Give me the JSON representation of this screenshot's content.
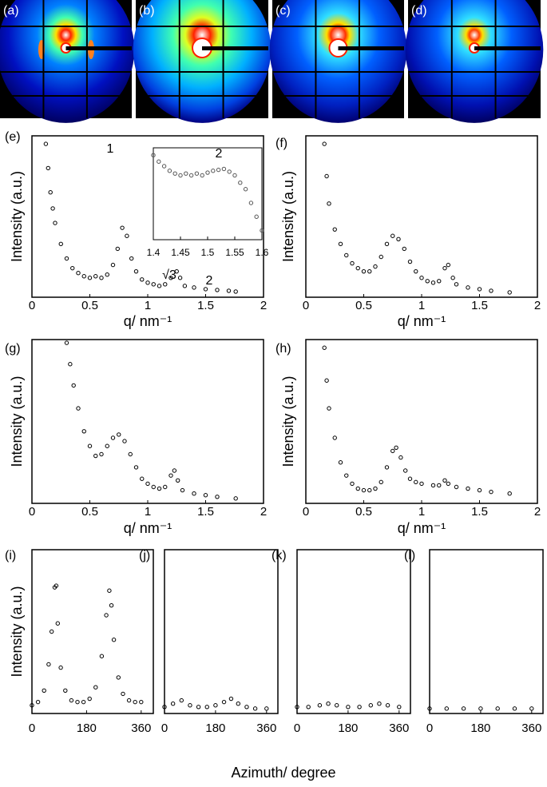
{
  "images": [
    "(a)",
    "(b)",
    "(c)",
    "(d)"
  ],
  "shared_xlabel": "Azimuth/ degree",
  "chart_data": [
    {
      "type": "scatter",
      "label": "(e)",
      "xlabel": "q/ nm⁻¹",
      "ylabel": "Intensity (a.u.)",
      "color": "#000000",
      "marker": "hollow",
      "x": [
        0.12,
        0.14,
        0.16,
        0.18,
        0.2,
        0.25,
        0.3,
        0.35,
        0.4,
        0.45,
        0.5,
        0.55,
        0.6,
        0.65,
        0.7,
        0.74,
        0.78,
        0.82,
        0.86,
        0.9,
        0.95,
        1.0,
        1.05,
        1.1,
        1.15,
        1.2,
        1.25,
        1.28,
        1.32,
        1.4,
        1.5,
        1.6,
        1.7,
        1.76
      ],
      "values": [
        95,
        80,
        65,
        55,
        46,
        33,
        24,
        18,
        15,
        13,
        12,
        13,
        12,
        14,
        20,
        30,
        43,
        38,
        24,
        16,
        11,
        9,
        8,
        7,
        8,
        12,
        16,
        12,
        7,
        6,
        5,
        4.5,
        4,
        3.5
      ],
      "xlim": [
        0,
        2
      ],
      "xticks": [
        0,
        0.5,
        1,
        1.5,
        2
      ],
      "ylim": [
        0,
        100
      ],
      "annotations": [
        "1",
        "√3",
        "2"
      ],
      "inset": {
        "type": "scatter",
        "label": "2",
        "color": "#555555",
        "marker": "hollow",
        "x": [
          1.4,
          1.41,
          1.42,
          1.43,
          1.44,
          1.45,
          1.46,
          1.47,
          1.48,
          1.49,
          1.5,
          1.51,
          1.52,
          1.53,
          1.54,
          1.55,
          1.56,
          1.57,
          1.58,
          1.59,
          1.6
        ],
        "values": [
          92,
          85,
          80,
          75,
          72,
          70,
          72,
          70,
          72,
          70,
          73,
          75,
          76,
          77,
          74,
          70,
          62,
          55,
          40,
          25,
          10
        ],
        "xlim": [
          1.4,
          1.6
        ],
        "xticks": [
          1.4,
          1.45,
          1.5,
          1.55,
          1.6
        ],
        "ylim": [
          0,
          100
        ]
      }
    },
    {
      "type": "scatter",
      "label": "(f)",
      "xlabel": "q/ nm⁻¹",
      "ylabel": "Intensity (a.u.)",
      "color": "#000000",
      "marker": "hollow",
      "x": [
        0.16,
        0.18,
        0.2,
        0.25,
        0.3,
        0.35,
        0.4,
        0.45,
        0.5,
        0.55,
        0.6,
        0.65,
        0.7,
        0.75,
        0.8,
        0.85,
        0.9,
        0.95,
        1.0,
        1.05,
        1.1,
        1.15,
        1.2,
        1.23,
        1.27,
        1.3,
        1.4,
        1.5,
        1.6,
        1.76
      ],
      "values": [
        95,
        75,
        58,
        42,
        33,
        26,
        21,
        18,
        16,
        16,
        19,
        25,
        33,
        38,
        36,
        30,
        22,
        16,
        12,
        10,
        9,
        10,
        18,
        20,
        12,
        8,
        6,
        5,
        4,
        3
      ],
      "xlim": [
        0,
        2
      ],
      "xticks": [
        0,
        0.5,
        1,
        1.5,
        2
      ],
      "ylim": [
        0,
        100
      ]
    },
    {
      "type": "scatter",
      "label": "(g)",
      "xlabel": "q/ nm⁻¹",
      "ylabel": "Intensity (a.u.)",
      "color": "#000000",
      "marker": "hollow",
      "x": [
        0.3,
        0.33,
        0.36,
        0.4,
        0.45,
        0.5,
        0.55,
        0.6,
        0.65,
        0.7,
        0.75,
        0.8,
        0.85,
        0.9,
        0.95,
        1.0,
        1.05,
        1.1,
        1.15,
        1.2,
        1.23,
        1.26,
        1.3,
        1.4,
        1.5,
        1.6,
        1.76
      ],
      "values": [
        98,
        85,
        72,
        58,
        44,
        35,
        29,
        30,
        35,
        40,
        42,
        38,
        30,
        22,
        15,
        12,
        10,
        9,
        10,
        17,
        20,
        14,
        8,
        6,
        5,
        4,
        3
      ],
      "xlim": [
        0,
        2
      ],
      "xticks": [
        0,
        0.5,
        1,
        1.5,
        2
      ],
      "ylim": [
        0,
        100
      ]
    },
    {
      "type": "scatter",
      "label": "(h)",
      "xlabel": "q/ nm⁻¹",
      "ylabel": "Intensity (a.u.)",
      "color": "#000000",
      "marker": "hollow",
      "x": [
        0.16,
        0.18,
        0.2,
        0.25,
        0.3,
        0.35,
        0.4,
        0.45,
        0.5,
        0.55,
        0.6,
        0.65,
        0.7,
        0.75,
        0.78,
        0.82,
        0.86,
        0.9,
        0.95,
        1.0,
        1.1,
        1.15,
        1.2,
        1.23,
        1.3,
        1.4,
        1.5,
        1.6,
        1.76
      ],
      "values": [
        95,
        75,
        58,
        40,
        25,
        17,
        12,
        9,
        8,
        8,
        9,
        13,
        22,
        32,
        34,
        28,
        20,
        15,
        13,
        12,
        11,
        11,
        14,
        12,
        10,
        9,
        8,
        7,
        6
      ],
      "xlim": [
        0,
        2
      ],
      "xticks": [
        0,
        0.5,
        1,
        1.5,
        2
      ],
      "ylim": [
        0,
        100
      ]
    },
    {
      "type": "scatter",
      "label": "(i)",
      "ylabel": "Intensity (a.u.)",
      "color": "#000000",
      "marker": "hollow",
      "x": [
        0,
        20,
        40,
        55,
        65,
        75,
        80,
        85,
        95,
        110,
        130,
        150,
        170,
        190,
        210,
        230,
        245,
        255,
        262,
        270,
        285,
        300,
        320,
        340,
        360
      ],
      "values": [
        5,
        7,
        14,
        30,
        50,
        77,
        78,
        55,
        28,
        14,
        8,
        7,
        7,
        9,
        16,
        35,
        60,
        75,
        66,
        45,
        22,
        12,
        8,
        7,
        7
      ],
      "xlim": [
        0,
        400
      ],
      "xticks": [
        0,
        180,
        360
      ],
      "ylim": [
        0,
        100
      ]
    },
    {
      "type": "scatter",
      "label": "(j)",
      "color": "#000000",
      "marker": "hollow",
      "x": [
        0,
        30,
        60,
        90,
        120,
        150,
        180,
        210,
        235,
        260,
        290,
        320,
        360
      ],
      "values": [
        4,
        6,
        8,
        5,
        4,
        4,
        5,
        7,
        9,
        6,
        4,
        3,
        3
      ],
      "xlim": [
        0,
        400
      ],
      "xticks": [
        0,
        180,
        360
      ],
      "ylim": [
        0,
        100
      ]
    },
    {
      "type": "scatter",
      "label": "(k)",
      "color": "#000000",
      "marker": "hollow",
      "x": [
        0,
        40,
        80,
        110,
        140,
        180,
        220,
        260,
        290,
        320,
        360
      ],
      "values": [
        4,
        4,
        5,
        6,
        5,
        4,
        4,
        5,
        6,
        5,
        4
      ],
      "xlim": [
        0,
        400
      ],
      "xticks": [
        0,
        180,
        360
      ],
      "ylim": [
        0,
        100
      ]
    },
    {
      "type": "scatter",
      "label": "(l)",
      "color": "#000000",
      "marker": "hollow",
      "x": [
        0,
        60,
        120,
        180,
        240,
        300,
        360
      ],
      "values": [
        3,
        3,
        3,
        3,
        3,
        3,
        3
      ],
      "xlim": [
        0,
        400
      ],
      "xticks": [
        0,
        180,
        360
      ],
      "ylim": [
        0,
        100
      ]
    }
  ]
}
